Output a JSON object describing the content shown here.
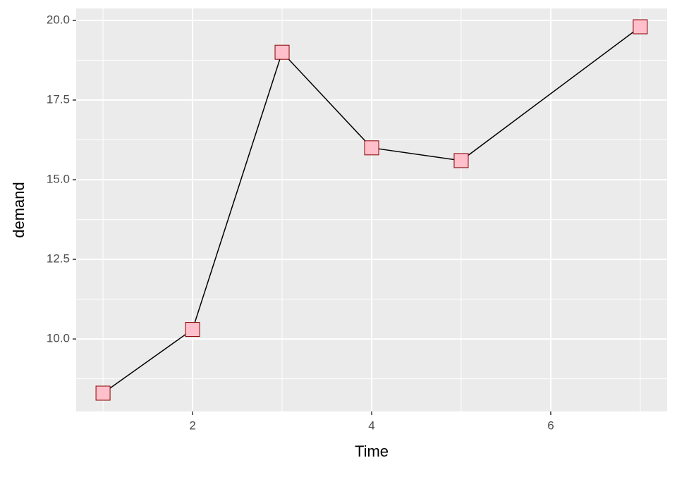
{
  "chart_data": {
    "type": "line",
    "x_label": "Time",
    "y_label": "demand",
    "x": [
      1,
      2,
      3,
      4,
      5,
      7
    ],
    "series": [
      {
        "name": "demand",
        "color": "#000000",
        "marker_fill": "#ffc0cb",
        "marker_edge": "#8b0000",
        "values": [
          8.3,
          10.3,
          19.0,
          16.0,
          15.6,
          19.8
        ]
      }
    ],
    "xlim": [
      0.7,
      7.3
    ],
    "xticks": [
      2,
      4,
      6
    ],
    "x_minor_ticks": [
      1,
      3,
      5,
      7
    ],
    "ylim": [
      7.725,
      20.375
    ],
    "yticks": [
      {
        "value": 10,
        "label": "10.0"
      },
      {
        "value": 12.5,
        "label": "12.5"
      },
      {
        "value": 15,
        "label": "15.0"
      },
      {
        "value": 17.5,
        "label": "17.5"
      },
      {
        "value": 20,
        "label": "20.0"
      }
    ],
    "y_minor_ticks": [
      8.75,
      11.25,
      13.75,
      16.25,
      18.75
    ],
    "grid": true
  }
}
